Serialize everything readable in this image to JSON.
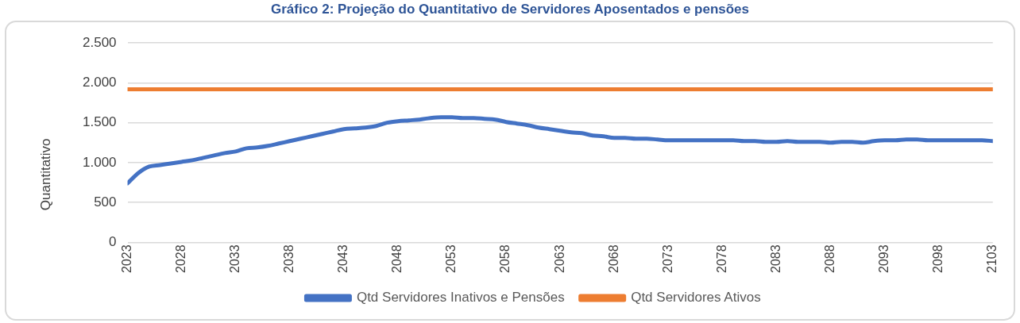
{
  "chart_data": {
    "type": "line",
    "title": "Gráfico 2: Projeção do Quantitativo de Servidores Aposentados e pensões",
    "ylabel": "Quantitativo",
    "x": [
      2023,
      2024,
      2025,
      2026,
      2027,
      2028,
      2029,
      2030,
      2031,
      2032,
      2033,
      2034,
      2035,
      2036,
      2037,
      2038,
      2039,
      2040,
      2041,
      2042,
      2043,
      2044,
      2045,
      2046,
      2047,
      2048,
      2049,
      2050,
      2051,
      2052,
      2053,
      2054,
      2055,
      2056,
      2057,
      2058,
      2059,
      2060,
      2061,
      2062,
      2063,
      2064,
      2065,
      2066,
      2067,
      2068,
      2069,
      2070,
      2071,
      2072,
      2073,
      2074,
      2075,
      2076,
      2077,
      2078,
      2079,
      2080,
      2081,
      2082,
      2083,
      2084,
      2085,
      2086,
      2087,
      2088,
      2089,
      2090,
      2091,
      2092,
      2093,
      2094,
      2095,
      2096,
      2097,
      2098,
      2099,
      2100,
      2101,
      2102,
      2103
    ],
    "series": [
      {
        "name": "Qtd Servidores Inativos e Pensões",
        "color": "#4472c4",
        "values": [
          740,
          870,
          950,
          970,
          990,
          1010,
          1030,
          1060,
          1090,
          1120,
          1140,
          1180,
          1190,
          1210,
          1240,
          1270,
          1300,
          1330,
          1360,
          1390,
          1420,
          1430,
          1440,
          1460,
          1500,
          1520,
          1530,
          1540,
          1560,
          1570,
          1570,
          1560,
          1560,
          1550,
          1540,
          1510,
          1490,
          1470,
          1440,
          1420,
          1400,
          1380,
          1370,
          1340,
          1330,
          1310,
          1310,
          1300,
          1300,
          1290,
          1280,
          1280,
          1280,
          1280,
          1280,
          1280,
          1280,
          1270,
          1270,
          1260,
          1260,
          1270,
          1260,
          1260,
          1260,
          1250,
          1260,
          1260,
          1250,
          1270,
          1280,
          1280,
          1290,
          1290,
          1280,
          1280,
          1280,
          1280,
          1280,
          1280,
          1270
        ]
      },
      {
        "name": "Qtd Servidores Ativos",
        "color": "#ed7d31",
        "x": [
          2023,
          2103
        ],
        "values": [
          1920,
          1920
        ]
      }
    ],
    "xlim": [
      2023,
      2103
    ],
    "xticks": [
      2023,
      2028,
      2033,
      2038,
      2043,
      2048,
      2053,
      2058,
      2063,
      2068,
      2073,
      2078,
      2083,
      2088,
      2093,
      2098,
      2103
    ],
    "ylim": [
      0,
      2500
    ],
    "yticks": [
      0,
      {
        "value": 500,
        "label": "500"
      },
      {
        "value": 1000,
        "label": "1.000"
      },
      {
        "value": 1500,
        "label": "1.500"
      },
      {
        "value": 2000,
        "label": "2.000"
      },
      {
        "value": 2500,
        "label": "2.500"
      }
    ],
    "grid": "y",
    "legend": "bottom",
    "marker": "none",
    "line_style": "solid"
  }
}
